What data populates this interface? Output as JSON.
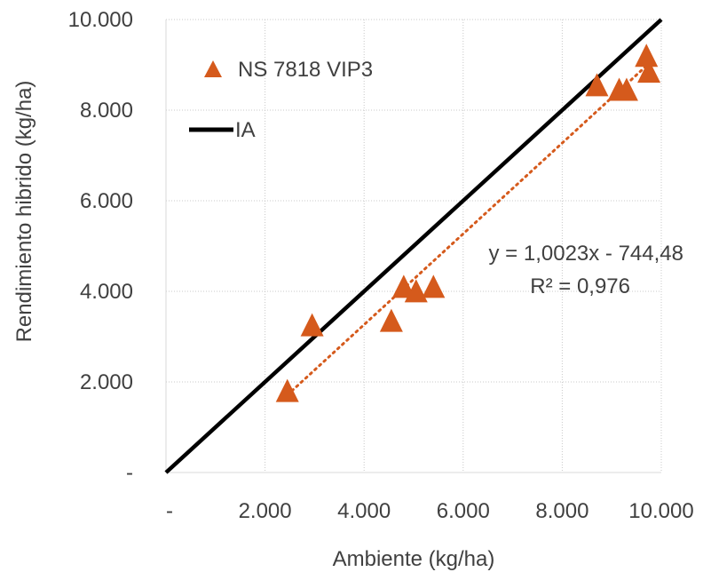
{
  "chart_data": {
    "type": "scatter",
    "title": "",
    "xlabel": "Ambiente (kg/ha)",
    "ylabel": "Rendimiento hibrido (kg/ha)",
    "xlim": [
      0,
      10000
    ],
    "ylim": [
      0,
      10000
    ],
    "x_ticks": [
      0,
      2000,
      4000,
      6000,
      8000,
      10000
    ],
    "y_ticks": [
      0,
      2000,
      4000,
      6000,
      8000,
      10000
    ],
    "x_tick_labels": [
      "-",
      "2.000",
      "4.000",
      "6.000",
      "8.000",
      "10.000"
    ],
    "y_tick_labels": [
      "-",
      "2.000",
      "4.000",
      "6.000",
      "8.000",
      "10.000"
    ],
    "grid": "dotted",
    "legend_position": "top-left",
    "series": [
      {
        "name": "NS 7818 VIP3",
        "marker": "triangle",
        "color": "#d55a1c",
        "points": [
          {
            "x": 2450,
            "y": 1750
          },
          {
            "x": 2950,
            "y": 3200
          },
          {
            "x": 4550,
            "y": 3300
          },
          {
            "x": 4800,
            "y": 4050
          },
          {
            "x": 5050,
            "y": 3950
          },
          {
            "x": 5400,
            "y": 4050
          },
          {
            "x": 8700,
            "y": 8500
          },
          {
            "x": 9150,
            "y": 8400
          },
          {
            "x": 9300,
            "y": 8400
          },
          {
            "x": 9700,
            "y": 9150
          },
          {
            "x": 9750,
            "y": 8800
          }
        ]
      },
      {
        "name": "IA",
        "type": "line",
        "color": "#000000",
        "points": [
          {
            "x": 0,
            "y": 0
          },
          {
            "x": 10000,
            "y": 10000
          }
        ]
      }
    ],
    "trendline": {
      "color": "#d55a1c",
      "style": "dotted",
      "slope": 1.0023,
      "intercept": -744.48,
      "x_range": [
        2450,
        9750
      ],
      "equation": "y = 1,0023x - 744,48",
      "r2_text": "R² = 0,976"
    }
  }
}
